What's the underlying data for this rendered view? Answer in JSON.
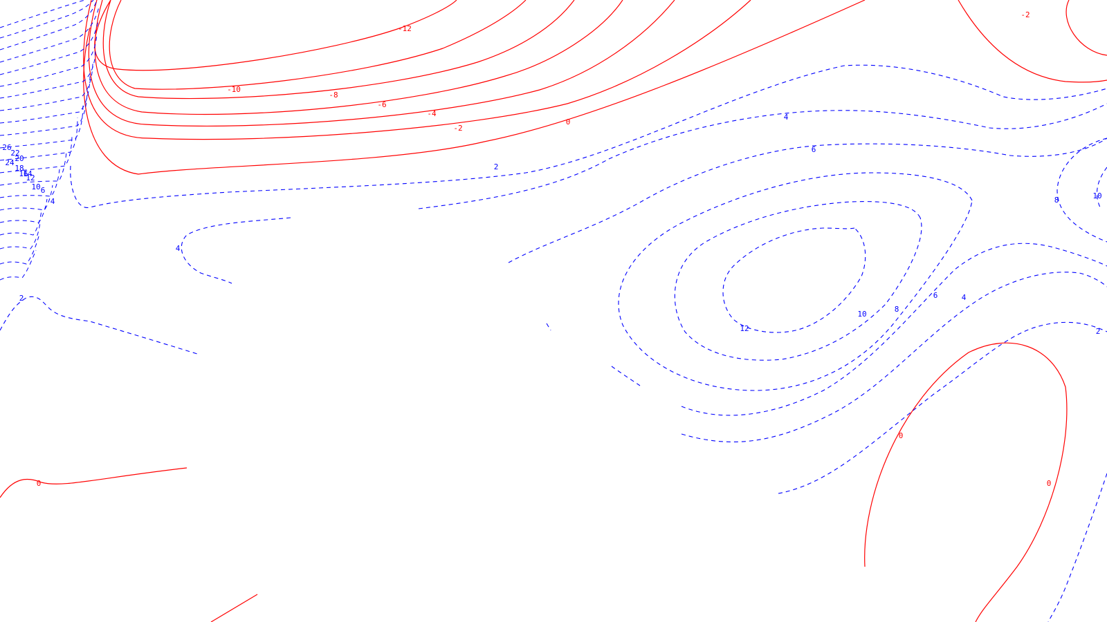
{
  "map": {
    "colors": {
      "negative": "#ff0000",
      "positive": "#0000ff",
      "background": "#ffffff"
    },
    "negative_contours": [
      {
        "value": -12,
        "label": "-12"
      },
      {
        "value": -10,
        "label": "-10"
      },
      {
        "value": -8,
        "label": "-8"
      },
      {
        "value": -6,
        "label": "-6"
      },
      {
        "value": -4,
        "label": "-4"
      },
      {
        "value": -2,
        "label": "-2"
      },
      {
        "value": 0,
        "label": "0"
      },
      {
        "value": -2,
        "label": "-2"
      },
      {
        "value": 0,
        "label": "0"
      },
      {
        "value": 0,
        "label": "0"
      },
      {
        "value": 0,
        "label": "0"
      }
    ],
    "positive_contours": [
      {
        "value": 2,
        "label": "2"
      },
      {
        "value": 4,
        "label": "4"
      },
      {
        "value": 6,
        "label": "6"
      },
      {
        "value": 2,
        "label": "2"
      },
      {
        "value": 4,
        "label": "4"
      },
      {
        "value": 6,
        "label": "6"
      },
      {
        "value": 8,
        "label": "8"
      },
      {
        "value": 10,
        "label": "10"
      },
      {
        "value": 12,
        "label": "12"
      },
      {
        "value": 4,
        "label": "4"
      },
      {
        "value": 2,
        "label": "2"
      },
      {
        "value": 8,
        "label": "8"
      },
      {
        "value": 10,
        "label": "10"
      },
      {
        "value": 2,
        "label": "2"
      },
      {
        "value": 4,
        "label": "4"
      },
      {
        "value": 6,
        "label": "6"
      },
      {
        "value": 10,
        "label": "10"
      },
      {
        "value": 12,
        "label": "12"
      },
      {
        "value": 14,
        "label": "14"
      },
      {
        "value": 16,
        "label": "16"
      },
      {
        "value": 18,
        "label": "18"
      },
      {
        "value": 20,
        "label": "20"
      },
      {
        "value": 22,
        "label": "22"
      },
      {
        "value": 24,
        "label": "24"
      },
      {
        "value": 26,
        "label": "26"
      }
    ]
  }
}
